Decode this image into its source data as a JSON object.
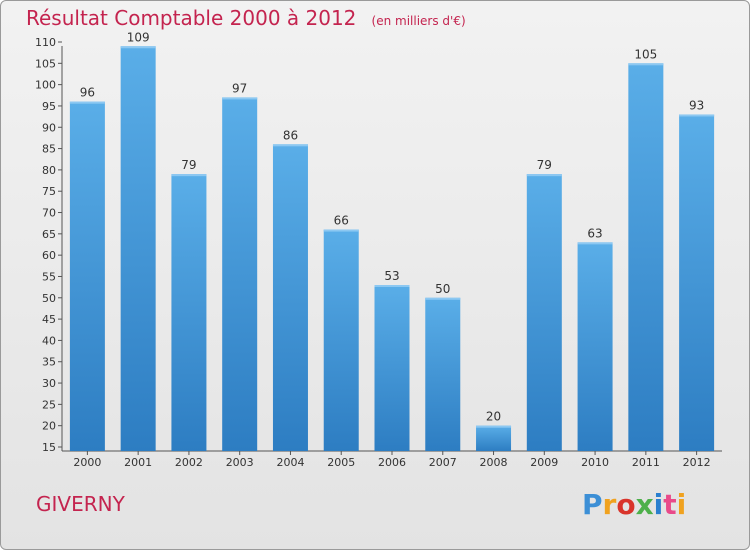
{
  "header": {
    "title": "Résultat Comptable 2000 à 2012",
    "subtitle": "(en milliers d'€)"
  },
  "footer": {
    "commune": "GIVERNY",
    "logo_letters": [
      "P",
      "r",
      "o",
      "x",
      "i",
      "t",
      "i"
    ]
  },
  "colors": {
    "accent": "#c4244f",
    "bar_top": "#5aaee8",
    "bar_bottom": "#2d7dc2"
  },
  "chart_data": {
    "type": "bar",
    "title": "Résultat Comptable 2000 à 2012",
    "subtitle": "(en milliers d'€)",
    "categories": [
      "2000",
      "2001",
      "2002",
      "2003",
      "2004",
      "2005",
      "2006",
      "2007",
      "2008",
      "2009",
      "2010",
      "2011",
      "2012"
    ],
    "values": [
      96,
      109,
      79,
      97,
      86,
      66,
      53,
      50,
      20,
      79,
      63,
      105,
      93
    ],
    "ylim": [
      15,
      110
    ],
    "yticks": [
      15,
      20,
      25,
      30,
      35,
      40,
      45,
      50,
      55,
      60,
      65,
      70,
      75,
      80,
      85,
      90,
      95,
      100,
      105,
      110
    ],
    "xlabel": "",
    "ylabel": "",
    "grid": false,
    "data_labels": true
  }
}
